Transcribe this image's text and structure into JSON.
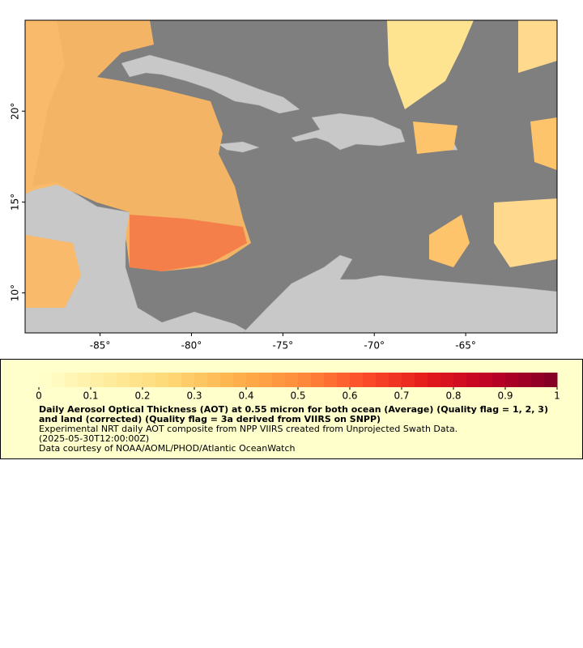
{
  "chart_data": {
    "type": "map",
    "xlim": [
      -89.1,
      -60
    ],
    "ylim": [
      7.8,
      25
    ],
    "xticks": [
      {
        "value": -85,
        "label": "-85°"
      },
      {
        "value": -80,
        "label": "-80°"
      },
      {
        "value": -75,
        "label": "-75°"
      },
      {
        "value": -70,
        "label": "-70°"
      },
      {
        "value": -65,
        "label": "-65°"
      }
    ],
    "yticks": [
      {
        "value": 10,
        "label": "10°"
      },
      {
        "value": 15,
        "label": "15°"
      },
      {
        "value": 20,
        "label": "20°"
      }
    ],
    "colorbar": {
      "lim": [
        0,
        1
      ],
      "ticks": [
        0,
        0.1,
        0.2,
        0.3,
        0.4,
        0.5,
        0.6,
        0.7,
        0.8,
        0.9,
        1
      ],
      "colormap": [
        "#ffffcc",
        "#ffeda0",
        "#fed976",
        "#feb24c",
        "#fd8d3c",
        "#fc4e2a",
        "#e31a1c",
        "#bd0026",
        "#800026"
      ]
    },
    "title": "Daily Aerosol Optical Thickness (AOT) at 0.55 micron for both ocean (Average) (Quality flag = 1, 2, 3) and land (corrected) (Quality flag = 3a derived from VIIRS on SNPP)",
    "subtitle": "Experimental NRT daily AOT composite from NPP VIIRS created from Unprojected Swath Data.",
    "date": "(2025-05-30T12:00:00Z)",
    "credit": "Data courtesy of NOAA/AOML/PHOD/Atlantic OceanWatch"
  }
}
